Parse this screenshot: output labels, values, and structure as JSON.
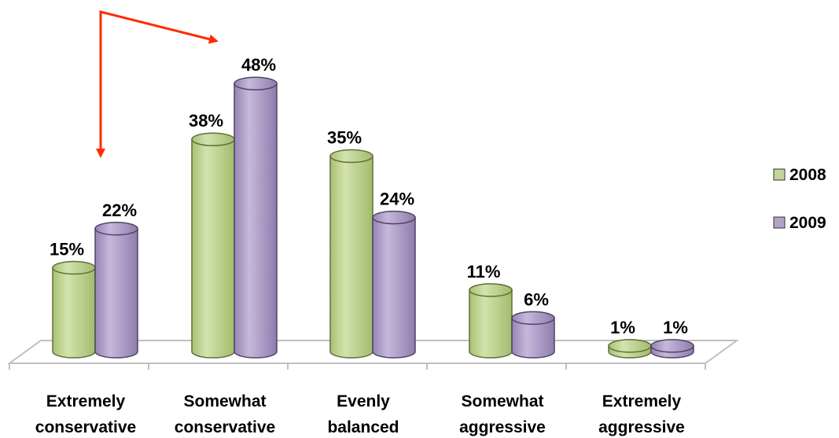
{
  "chart_data": {
    "type": "bar",
    "categories": [
      [
        "Extremely",
        "conservative"
      ],
      [
        "Somewhat",
        "conservative"
      ],
      [
        "Evenly",
        "balanced"
      ],
      [
        "Somewhat",
        "aggressive"
      ],
      [
        "Extremely",
        "aggressive"
      ]
    ],
    "series": [
      {
        "name": "2008",
        "values": [
          15,
          38,
          35,
          11,
          1
        ],
        "labels": [
          "15%",
          "38%",
          "35%",
          "11%",
          "1%"
        ],
        "color": "#c3d69b"
      },
      {
        "name": "2009",
        "values": [
          22,
          48,
          24,
          6,
          1
        ],
        "labels": [
          "22%",
          "48%",
          "24%",
          "6%",
          "1%"
        ],
        "color": "#b3a2c7"
      }
    ],
    "ylim": [
      0,
      50
    ],
    "grid": false,
    "legend_position": "right",
    "cylinder_style": true,
    "annotation": {
      "type": "arrows",
      "color": "#ff2a00",
      "from_category": "Somewhat conservative",
      "to_category": "Extremely conservative",
      "series": "2009"
    }
  }
}
